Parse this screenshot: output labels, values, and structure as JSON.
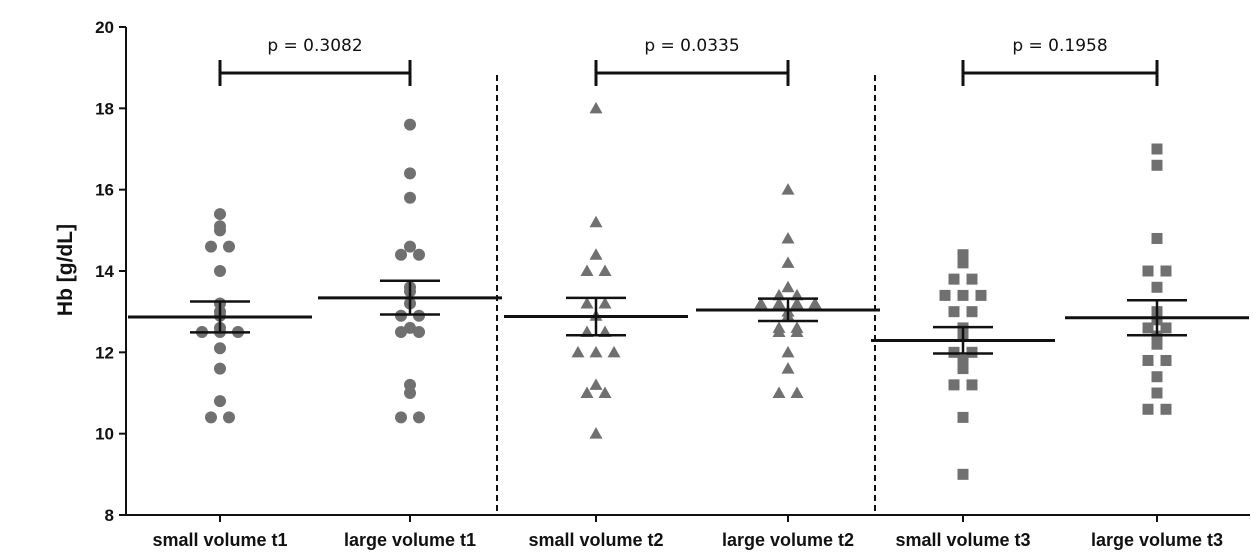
{
  "chart_data": {
    "type": "scatter",
    "subtype": "dot-plot-with-mean-and-sem",
    "ylabel": "Hb [g/dL]",
    "ylim": [
      8,
      20
    ],
    "yticks": [
      8,
      10,
      12,
      14,
      16,
      18,
      20
    ],
    "grid": false,
    "categories": [
      "small volume t1",
      "large volume t1",
      "small volume t2",
      "large volume t2",
      "small volume t3",
      "large volume t3"
    ],
    "marker_color": "#707070",
    "groups": [
      {
        "label": "small volume t1",
        "marker": "circle",
        "values": [
          15.4,
          15.1,
          15.0,
          14.6,
          14.6,
          14.0,
          13.2,
          13.0,
          12.9,
          12.6,
          12.5,
          12.5,
          12.5,
          12.1,
          11.6,
          10.8,
          10.4,
          10.4
        ],
        "mean": 12.87,
        "sem_upper": 13.25,
        "sem_lower": 12.49
      },
      {
        "label": "large volume t1",
        "marker": "circle",
        "values": [
          17.6,
          16.4,
          15.8,
          14.6,
          14.4,
          14.4,
          13.6,
          13.5,
          13.2,
          12.9,
          12.9,
          12.6,
          12.5,
          12.5,
          11.2,
          11.0,
          10.4,
          10.4
        ],
        "mean": 13.34,
        "sem_upper": 13.76,
        "sem_lower": 12.93
      },
      {
        "label": "small volume t2",
        "marker": "triangle",
        "values": [
          18.0,
          15.2,
          14.4,
          14.0,
          14.0,
          13.2,
          13.2,
          12.9,
          12.5,
          12.5,
          12.0,
          12.0,
          12.0,
          11.2,
          11.0,
          11.0,
          10.0
        ],
        "mean": 12.88,
        "sem_upper": 13.34,
        "sem_lower": 12.42
      },
      {
        "label": "large volume t2",
        "marker": "triangle",
        "values": [
          16.0,
          14.8,
          14.2,
          13.6,
          13.4,
          13.4,
          13.2,
          13.2,
          13.2,
          13.2,
          13.0,
          12.9,
          12.6,
          12.6,
          12.5,
          12.5,
          12.0,
          11.6,
          11.0,
          11.0
        ],
        "mean": 13.04,
        "sem_upper": 13.32,
        "sem_lower": 12.77
      },
      {
        "label": "small volume t3",
        "marker": "square",
        "values": [
          14.4,
          14.2,
          13.8,
          13.8,
          13.4,
          13.4,
          13.4,
          13.0,
          13.0,
          12.6,
          12.4,
          12.0,
          12.0,
          11.8,
          11.6,
          11.2,
          11.2,
          10.4,
          9.0
        ],
        "mean": 12.29,
        "sem_upper": 12.62,
        "sem_lower": 11.97
      },
      {
        "label": "large volume t3",
        "marker": "square",
        "values": [
          17.0,
          16.6,
          14.8,
          14.0,
          14.0,
          13.6,
          13.0,
          12.8,
          12.6,
          12.6,
          12.4,
          12.2,
          11.8,
          11.8,
          11.4,
          11.0,
          10.6,
          10.6
        ],
        "mean": 12.85,
        "sem_upper": 13.28,
        "sem_lower": 12.42
      }
    ],
    "comparisons": [
      {
        "groups": [
          "small volume t1",
          "large volume t1"
        ],
        "label": "p = 0.3082"
      },
      {
        "groups": [
          "small volume t2",
          "large volume t2"
        ],
        "label": "p = 0.0335"
      },
      {
        "groups": [
          "small volume t3",
          "large volume t3"
        ],
        "label": "p = 0.1958"
      }
    ]
  }
}
